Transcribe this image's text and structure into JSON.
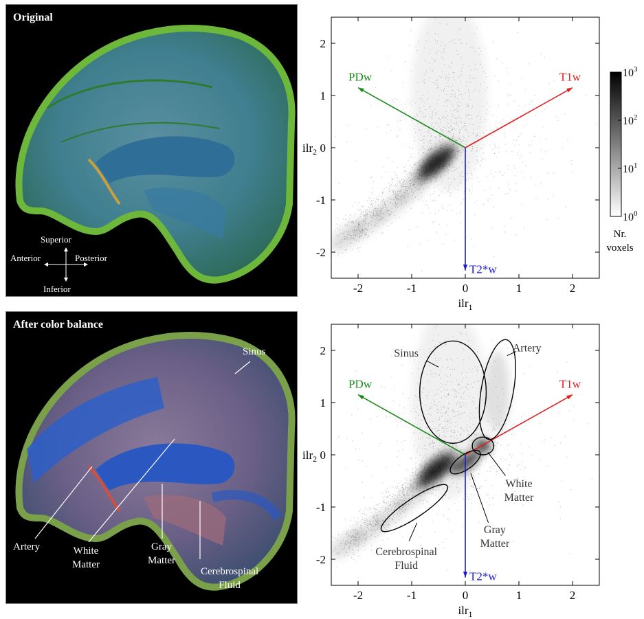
{
  "panels": {
    "original": {
      "title": "Original",
      "orientation": {
        "superior": "Superior",
        "anterior": "Anterior",
        "posterior": "Posterior",
        "inferior": "Inferior"
      }
    },
    "balanced": {
      "title": "After color balance",
      "labels": {
        "sinus": "Sinus",
        "artery": "Artery",
        "white_matter": [
          "White",
          "Matter"
        ],
        "gray_matter": [
          "Gray",
          "Matter"
        ],
        "csf": [
          "Cerebrospinal",
          "Fluid"
        ]
      }
    }
  },
  "colorbar": {
    "ticks": [
      {
        "base": "10",
        "exp": "3"
      },
      {
        "base": "10",
        "exp": "2"
      },
      {
        "base": "10",
        "exp": "1"
      },
      {
        "base": "10",
        "exp": "0"
      }
    ],
    "label": [
      "Nr.",
      "voxels"
    ]
  },
  "colors": {
    "pd": "#1a8a1a",
    "t1": "#e01e1e",
    "t2": "#1a1ad6"
  },
  "chart_data": [
    {
      "type": "heatmap",
      "xlabel": {
        "base": "ilr",
        "sub": "1"
      },
      "ylabel": {
        "base": "ilr",
        "sub": "2"
      },
      "xlim": [
        -2.5,
        2.5
      ],
      "ylim": [
        -2.5,
        2.5
      ],
      "xticks": [
        -2,
        -1,
        0,
        1,
        2
      ],
      "yticks": [
        -2,
        -1,
        0,
        1,
        2
      ],
      "xtick_labels": [
        "-2",
        "-1",
        "0",
        "1",
        "2"
      ],
      "ytick_labels": [
        "-2",
        "-1",
        "0",
        "1",
        "2"
      ],
      "color_scale": "log",
      "color_range": [
        1,
        1000
      ],
      "axes_vectors": [
        {
          "name": "PDw",
          "x": -2.0,
          "y": 1.15,
          "color": "#1a8a1a"
        },
        {
          "name": "T1w",
          "x": 2.0,
          "y": 1.15,
          "color": "#e01e1e"
        },
        {
          "name": "T2*w",
          "x": 0.0,
          "y": -2.35,
          "color": "#1a1ad6"
        }
      ]
    },
    {
      "type": "heatmap",
      "xlabel": {
        "base": "ilr",
        "sub": "1"
      },
      "ylabel": {
        "base": "ilr",
        "sub": "2"
      },
      "xlim": [
        -2.5,
        2.5
      ],
      "ylim": [
        -2.5,
        2.5
      ],
      "xticks": [
        -2,
        -1,
        0,
        1,
        2
      ],
      "yticks": [
        -2,
        -1,
        0,
        1,
        2
      ],
      "xtick_labels": [
        "-2",
        "-1",
        "0",
        "1",
        "2"
      ],
      "ytick_labels": [
        "-2",
        "-1",
        "0",
        "1",
        "2"
      ],
      "color_scale": "log",
      "color_range": [
        1,
        1000
      ],
      "axes_vectors": [
        {
          "name": "PDw",
          "x": -2.0,
          "y": 1.15,
          "color": "#1a8a1a"
        },
        {
          "name": "T1w",
          "x": 2.0,
          "y": 1.15,
          "color": "#e01e1e"
        },
        {
          "name": "T2*w",
          "x": 0.0,
          "y": -2.35,
          "color": "#1a1ad6"
        }
      ],
      "regions": [
        {
          "name": "Sinus",
          "lines": [
            "Sinus"
          ],
          "cx": -0.23,
          "cy": 1.2,
          "rx": 0.62,
          "ry": 0.98,
          "rotate": 0
        },
        {
          "name": "Artery",
          "lines": [
            "Artery"
          ],
          "cx": 0.6,
          "cy": 1.25,
          "rx": 0.3,
          "ry": 0.97,
          "rotate": 10
        },
        {
          "name": "White Matter",
          "lines": [
            "White",
            "Matter"
          ],
          "cx": 0.33,
          "cy": 0.17,
          "rx": 0.2,
          "ry": 0.17,
          "rotate": 0
        },
        {
          "name": "Gray Matter",
          "lines": [
            "Gray",
            "Matter"
          ],
          "cx": 0.0,
          "cy": -0.14,
          "rx": 0.33,
          "ry": 0.14,
          "rotate": -35
        },
        {
          "name": "Cerebrospinal Fluid",
          "lines": [
            "Cerebrospinal",
            "Fluid"
          ],
          "cx": -0.95,
          "cy": -1.02,
          "rx": 0.74,
          "ry": 0.18,
          "rotate": -34
        }
      ]
    }
  ]
}
